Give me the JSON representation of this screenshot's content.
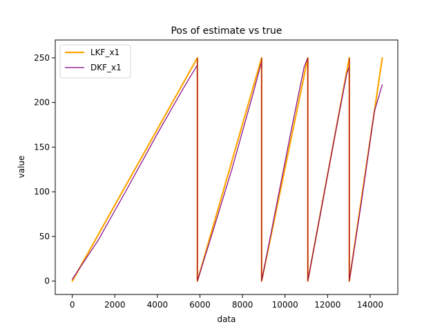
{
  "chart_data": {
    "type": "line",
    "title": "Pos of estimate vs true",
    "xlabel": "data",
    "ylabel": "value",
    "xlim": [
      -800,
      15300
    ],
    "ylim": [
      -15,
      270
    ],
    "xticks": [
      0,
      2000,
      4000,
      6000,
      8000,
      10000,
      12000,
      14000
    ],
    "yticks": [
      0,
      50,
      100,
      150,
      200,
      250
    ],
    "xtick_labels": [
      "0",
      "2000",
      "4000",
      "6000",
      "8000",
      "10000",
      "12000",
      "14000"
    ],
    "ytick_labels": [
      "0",
      "50",
      "100",
      "150",
      "200",
      "250"
    ],
    "grid": false,
    "legend": {
      "placement": "upper-left",
      "entries": [
        "LKF_x1",
        "DKF_x1"
      ]
    },
    "colors": {
      "lkf": "#FFA500",
      "dkf": "#800080",
      "vertical_drop": "#B22222"
    },
    "series": [
      {
        "name": "LKF_x1",
        "x": [
          0,
          5880,
          5880,
          8900,
          8900,
          11070,
          11070,
          13020,
          13020,
          14570
        ],
        "values": [
          0,
          250,
          0,
          250,
          0,
          250,
          0,
          250,
          0,
          250
        ]
      },
      {
        "name": "DKF_x1",
        "x": [
          0,
          1200,
          2500,
          4000,
          5200,
          5880,
          5880,
          6600,
          7500,
          8500,
          8900,
          8900,
          9600,
          10300,
          10900,
          11070,
          11070,
          11700,
          12400,
          12900,
          13020,
          13020,
          13600,
          14200,
          14570
        ],
        "values": [
          2,
          45,
          100,
          165,
          215,
          242,
          0,
          55,
          125,
          210,
          246,
          0,
          85,
          170,
          240,
          250,
          0,
          80,
          170,
          232,
          240,
          0,
          90,
          190,
          220
        ]
      }
    ]
  }
}
